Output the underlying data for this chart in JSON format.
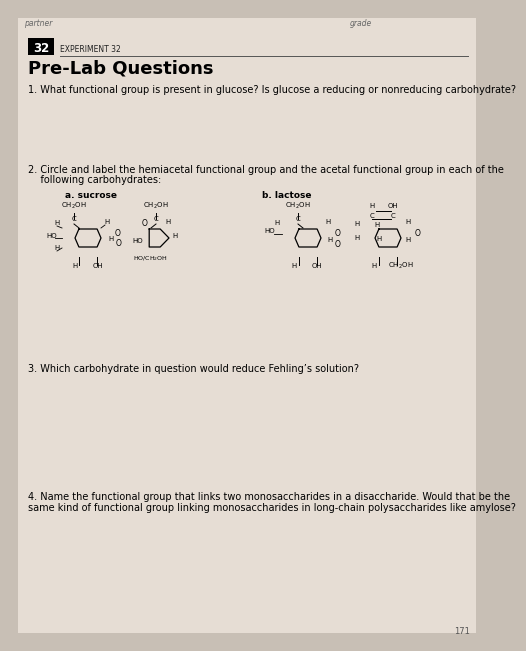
{
  "bg_color": "#c8bfb5",
  "page_color": "#e6ddd4",
  "header_left": "partner",
  "header_right": "grade",
  "experiment_num": "32",
  "experiment_label": "EXPERIMENT 32",
  "title": "Pre-Lab Questions",
  "q1": "1. What functional group is present in glucose? Is glucose a reducing or nonreducing carbohydrate?",
  "q2_line1": "2. Circle and label the hemiacetal functional group and the acetal functional group in each of the",
  "q2_line2": "    following carbohydrates:",
  "q2a_label": "a. sucrose",
  "q2b_label": "b. lactose",
  "q3": "3. Which carbohydrate in question would reduce Fehling’s solution?",
  "q4_line1": "4. Name the functional group that links two monosaccharides in a disaccharide. Would that be the",
  "q4_line2": "same kind of functional group linking monosaccharides in long-chain polysaccharides like amylose?",
  "footer": "171"
}
